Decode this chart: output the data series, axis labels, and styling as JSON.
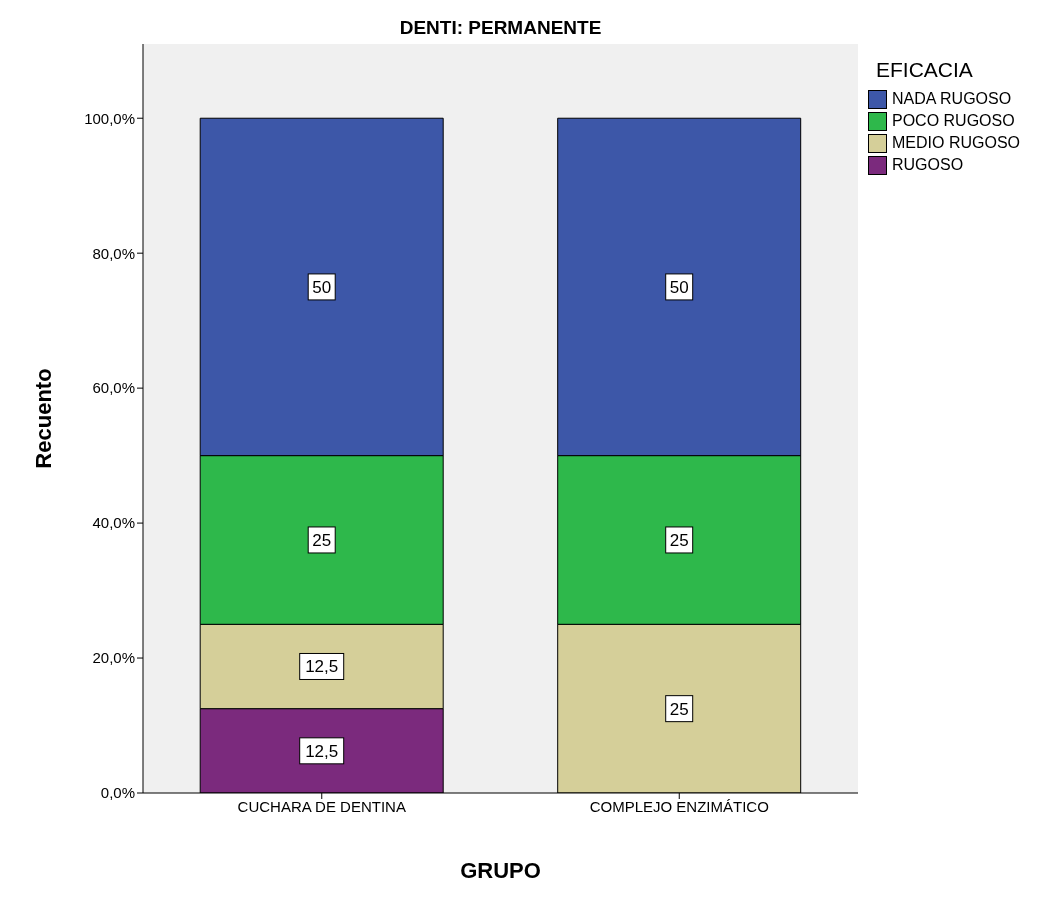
{
  "chart_data": {
    "type": "bar",
    "title": "DENTI: PERMANENTE",
    "xlabel": "GRUPO",
    "ylabel": "Recuento",
    "legend_title": "EFICACIA",
    "categories": [
      "CUCHARA DE DENTINA",
      "COMPLEJO ENZIMÁTICO"
    ],
    "stacked": true,
    "series": [
      {
        "name": "RUGOSO",
        "color": "#7b2a7d",
        "values": [
          12.5,
          0
        ],
        "value_labels": [
          "12,5",
          null
        ]
      },
      {
        "name": "MEDIO RUGOSO",
        "color": "#d5cf99",
        "values": [
          12.5,
          25
        ],
        "value_labels": [
          "12,5",
          "25"
        ]
      },
      {
        "name": "POCO RUGOSO",
        "color": "#2eb84b",
        "values": [
          25,
          25
        ],
        "value_labels": [
          "25",
          "25"
        ]
      },
      {
        "name": "NADA RUGOSO",
        "color": "#3d57a8",
        "values": [
          50,
          50
        ],
        "value_labels": [
          "50",
          "50"
        ]
      }
    ],
    "ylim": [
      0,
      111
    ],
    "yticks": [
      {
        "value": 0,
        "label": "0,0%"
      },
      {
        "value": 20,
        "label": "20,0%"
      },
      {
        "value": 40,
        "label": "40,0%"
      },
      {
        "value": 60,
        "label": "60,0%"
      },
      {
        "value": 80,
        "label": "80,0%"
      },
      {
        "value": 100,
        "label": "100,0%"
      }
    ],
    "grid": false,
    "legend": "top right"
  }
}
